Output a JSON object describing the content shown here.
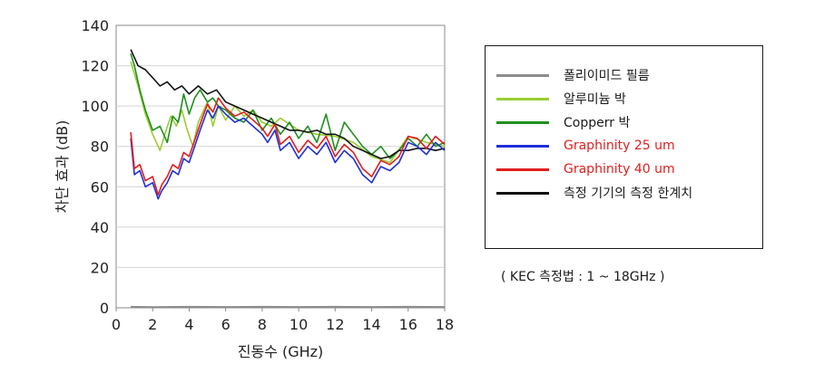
{
  "chart_data": {
    "type": "line",
    "xlabel": "진동수 (GHz)",
    "ylabel": "차단 효과 (dB)",
    "xlim": [
      0,
      18
    ],
    "ylim": [
      0,
      140
    ],
    "xticks": [
      "0",
      "2",
      "4",
      "6",
      "8",
      "10",
      "12",
      "14",
      "16",
      "18"
    ],
    "yticks": [
      "0",
      "20",
      "40",
      "60",
      "80",
      "100",
      "120",
      "140"
    ],
    "grid": "horizontal",
    "legend_position": "right",
    "note": "( KEC 측정법 : 1 ~ 18GHz )",
    "series": [
      {
        "name": "폴리이미드 필름",
        "color": "#8c8c8c",
        "x": [
          0.8,
          2,
          4,
          6,
          8,
          10,
          12,
          14,
          16,
          18
        ],
        "y": [
          0.5,
          0.3,
          0.5,
          0.4,
          0.5,
          0.4,
          0.5,
          0.4,
          0.5,
          0.4
        ]
      },
      {
        "name": "알루미늄 박",
        "color": "#9acd32",
        "x": [
          0.8,
          1.2,
          1.6,
          2.0,
          2.4,
          2.7,
          3.0,
          3.3,
          3.6,
          3.9,
          4.2,
          4.5,
          5.0,
          5.3,
          5.6,
          6.0,
          6.5,
          7.0,
          7.5,
          8.0,
          8.5,
          9.0,
          10,
          11,
          12,
          13,
          14,
          15,
          16,
          17,
          18
        ],
        "y": [
          122,
          110,
          96,
          86,
          78,
          87,
          95,
          90,
          98,
          88,
          80,
          92,
          102,
          90,
          100,
          93,
          100,
          95,
          98,
          92,
          90,
          94,
          88,
          86,
          85,
          82,
          75,
          72,
          85,
          82,
          80
        ]
      },
      {
        "name": "Copperr 박",
        "color": "#1f8f1f",
        "x": [
          0.8,
          1.0,
          1.3,
          1.6,
          2.0,
          2.4,
          2.8,
          3.1,
          3.4,
          3.7,
          4.0,
          4.3,
          4.6,
          5.0,
          5.3,
          5.6,
          6.0,
          6.5,
          7.0,
          7.5,
          8.0,
          8.5,
          9.0,
          9.5,
          10,
          10.5,
          11,
          11.5,
          12.0,
          12.5,
          13.0,
          13.5,
          14.0,
          14.5,
          15.0,
          15.5,
          16.0,
          16.5,
          17.0,
          17.5,
          18.0
        ],
        "y": [
          126,
          120,
          108,
          98,
          88,
          90,
          82,
          95,
          92,
          106,
          96,
          104,
          108,
          102,
          104,
          100,
          98,
          94,
          92,
          98,
          88,
          94,
          86,
          92,
          84,
          90,
          82,
          96,
          78,
          92,
          86,
          80,
          76,
          80,
          74,
          78,
          84,
          80,
          86,
          80,
          82
        ]
      },
      {
        "name": "Graphinity  25 um",
        "color": "#1f2fd8",
        "x": [
          0.8,
          1.0,
          1.3,
          1.6,
          2.0,
          2.3,
          2.5,
          2.8,
          3.1,
          3.4,
          3.7,
          4.0,
          4.3,
          4.6,
          5.0,
          5.3,
          5.6,
          6.0,
          6.5,
          7.0,
          7.5,
          8.0,
          8.3,
          8.7,
          9.0,
          9.5,
          10.0,
          10.5,
          11.0,
          11.5,
          12.0,
          12.5,
          13.0,
          13.5,
          14.0,
          14.5,
          15.0,
          15.5,
          16.0,
          16.5,
          17.0,
          17.5,
          18.0
        ],
        "y": [
          84,
          66,
          68,
          60,
          62,
          54,
          58,
          62,
          68,
          66,
          74,
          72,
          80,
          88,
          98,
          94,
          100,
          96,
          92,
          94,
          90,
          86,
          82,
          88,
          78,
          82,
          74,
          80,
          76,
          82,
          72,
          78,
          74,
          66,
          62,
          70,
          68,
          72,
          82,
          80,
          76,
          82,
          78
        ]
      },
      {
        "name": "Graphinity  40 um",
        "color": "#e01e1e",
        "x": [
          0.8,
          1.0,
          1.3,
          1.6,
          2.0,
          2.3,
          2.5,
          2.8,
          3.1,
          3.4,
          3.7,
          4.0,
          4.3,
          4.6,
          5.0,
          5.3,
          5.6,
          6.0,
          6.5,
          7.0,
          7.5,
          8.0,
          8.3,
          8.7,
          9.0,
          9.5,
          10.0,
          10.5,
          11.0,
          11.5,
          12.0,
          12.5,
          13.0,
          13.5,
          14.0,
          14.5,
          15.0,
          15.5,
          16.0,
          16.5,
          17.0,
          17.5,
          18.0
        ],
        "y": [
          87,
          69,
          71,
          63,
          65,
          56,
          61,
          65,
          71,
          69,
          77,
          75,
          83,
          91,
          101,
          97,
          104,
          99,
          95,
          97,
          93,
          89,
          85,
          91,
          81,
          85,
          77,
          83,
          79,
          85,
          75,
          81,
          77,
          69,
          65,
          73,
          71,
          75,
          85,
          84,
          79,
          85,
          81
        ]
      },
      {
        "name": "측정 기기의 측정 한계치",
        "color": "#111111",
        "x": [
          0.8,
          1.2,
          1.6,
          2.0,
          2.4,
          2.8,
          3.2,
          3.6,
          4.0,
          4.5,
          5.0,
          5.5,
          6.0,
          6.5,
          7.0,
          7.5,
          8.0,
          8.5,
          9.0,
          9.5,
          10,
          10.5,
          11,
          11.5,
          12,
          12.5,
          13,
          13.5,
          14,
          14.5,
          15,
          15.5,
          16,
          16.5,
          17,
          17.5,
          18
        ],
        "y": [
          128,
          120,
          118,
          114,
          110,
          112,
          108,
          110,
          106,
          110,
          106,
          108,
          102,
          100,
          98,
          96,
          94,
          92,
          90,
          88,
          88,
          87,
          88,
          86,
          86,
          84,
          80,
          78,
          76,
          74,
          75,
          78,
          78,
          79,
          79,
          78,
          79
        ]
      }
    ]
  }
}
